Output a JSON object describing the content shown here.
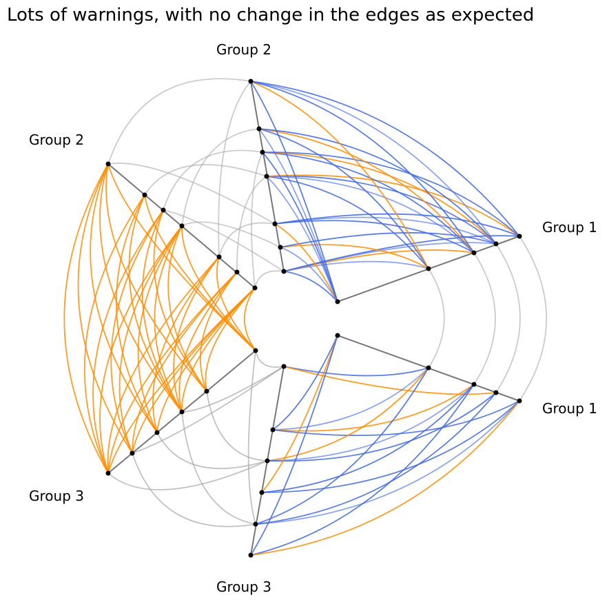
{
  "title": "Lots of warnings, with no change in the edges as expected",
  "axis_labels": [
    "Group 1",
    "Group 1",
    "Group 2",
    "Group 2",
    "Group 3",
    "Group 3"
  ]
}
